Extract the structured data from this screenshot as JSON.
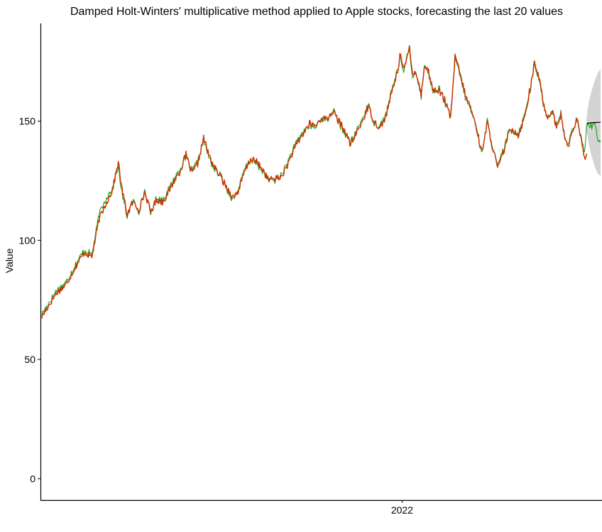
{
  "chart_data": {
    "type": "line",
    "title": "Damped Holt-Winters' multiplicative method applied to Apple stocks, forecasting the last 20 values",
    "xlabel": "",
    "ylabel": "Value",
    "ylim": [
      -9,
      191
    ],
    "yticks": [
      0,
      50,
      100,
      150
    ],
    "xticks": [
      {
        "index": 490,
        "label": "2022"
      }
    ],
    "grid": false,
    "legend": "none",
    "n_points": 761,
    "forecast_start_index": 741,
    "colors": {
      "actual": "#1a9e1a",
      "fitted": "#cc3300",
      "forecast": "#000000",
      "interval": "#d3d3d3"
    },
    "series": [
      {
        "key": "actual",
        "role": "actual",
        "knots": [
          [
            0,
            69
          ],
          [
            6,
            72
          ],
          [
            20,
            79
          ],
          [
            32,
            82
          ],
          [
            46,
            90
          ],
          [
            58,
            96
          ],
          [
            68,
            94
          ],
          [
            78,
            111
          ],
          [
            88,
            118
          ],
          [
            96,
            122
          ],
          [
            104,
            131
          ],
          [
            108,
            121
          ],
          [
            116,
            110
          ],
          [
            124,
            117
          ],
          [
            132,
            112
          ],
          [
            140,
            121
          ],
          [
            148,
            111
          ],
          [
            156,
            118
          ],
          [
            164,
            117
          ],
          [
            172,
            121
          ],
          [
            180,
            126
          ],
          [
            188,
            130
          ],
          [
            196,
            135
          ],
          [
            204,
            129
          ],
          [
            212,
            133
          ],
          [
            220,
            142
          ],
          [
            228,
            134
          ],
          [
            236,
            129
          ],
          [
            244,
            127
          ],
          [
            252,
            121
          ],
          [
            260,
            117
          ],
          [
            268,
            122
          ],
          [
            276,
            130
          ],
          [
            284,
            134
          ],
          [
            292,
            132
          ],
          [
            300,
            129
          ],
          [
            308,
            126
          ],
          [
            316,
            125
          ],
          [
            324,
            127
          ],
          [
            332,
            131
          ],
          [
            340,
            137
          ],
          [
            348,
            142
          ],
          [
            356,
            146
          ],
          [
            364,
            148
          ],
          [
            372,
            147
          ],
          [
            380,
            152
          ],
          [
            388,
            150
          ],
          [
            396,
            155
          ],
          [
            404,
            149
          ],
          [
            412,
            145
          ],
          [
            420,
            141
          ],
          [
            428,
            146
          ],
          [
            436,
            151
          ],
          [
            444,
            157
          ],
          [
            452,
            149
          ],
          [
            460,
            148
          ],
          [
            468,
            153
          ],
          [
            476,
            163
          ],
          [
            484,
            172
          ],
          [
            488,
            178
          ],
          [
            492,
            170
          ],
          [
            496,
            176
          ],
          [
            500,
            180
          ],
          [
            504,
            168
          ],
          [
            508,
            172
          ],
          [
            512,
            166
          ],
          [
            516,
            160
          ],
          [
            520,
            174
          ],
          [
            526,
            170
          ],
          [
            532,
            162
          ],
          [
            540,
            164
          ],
          [
            548,
            158
          ],
          [
            556,
            152
          ],
          [
            562,
            176
          ],
          [
            568,
            170
          ],
          [
            576,
            160
          ],
          [
            584,
            154
          ],
          [
            592,
            147
          ],
          [
            598,
            136
          ],
          [
            606,
            150
          ],
          [
            612,
            140
          ],
          [
            620,
            131
          ],
          [
            628,
            138
          ],
          [
            634,
            145
          ],
          [
            640,
            146
          ],
          [
            648,
            145
          ],
          [
            656,
            152
          ],
          [
            664,
            164
          ],
          [
            670,
            173
          ],
          [
            676,
            168
          ],
          [
            682,
            157
          ],
          [
            688,
            152
          ],
          [
            694,
            154
          ],
          [
            700,
            148
          ],
          [
            706,
            154
          ],
          [
            710,
            144
          ],
          [
            716,
            140
          ],
          [
            722,
            147
          ],
          [
            728,
            150
          ],
          [
            734,
            142
          ],
          [
            738,
            137
          ],
          [
            741,
            148
          ],
          [
            744,
            149
          ],
          [
            748,
            148
          ],
          [
            751,
            150
          ],
          [
            754,
            146
          ],
          [
            757,
            142
          ],
          [
            760,
            142
          ]
        ]
      },
      {
        "key": "fitted",
        "role": "fitted",
        "knots": [
          [
            0,
            68
          ],
          [
            6,
            71
          ],
          [
            20,
            78
          ],
          [
            32,
            81
          ],
          [
            46,
            89
          ],
          [
            58,
            95
          ],
          [
            68,
            93
          ],
          [
            78,
            109
          ],
          [
            88,
            116
          ],
          [
            96,
            121
          ],
          [
            104,
            133
          ],
          [
            108,
            123
          ],
          [
            116,
            111
          ],
          [
            124,
            116
          ],
          [
            132,
            113
          ],
          [
            140,
            120
          ],
          [
            148,
            112
          ],
          [
            156,
            117
          ],
          [
            164,
            116
          ],
          [
            172,
            120
          ],
          [
            180,
            125
          ],
          [
            188,
            129
          ],
          [
            196,
            136
          ],
          [
            204,
            128
          ],
          [
            212,
            132
          ],
          [
            220,
            143
          ],
          [
            228,
            135
          ],
          [
            236,
            130
          ],
          [
            244,
            126
          ],
          [
            252,
            122
          ],
          [
            260,
            118
          ],
          [
            268,
            121
          ],
          [
            276,
            129
          ],
          [
            284,
            134
          ],
          [
            292,
            133
          ],
          [
            300,
            130
          ],
          [
            308,
            125
          ],
          [
            316,
            126
          ],
          [
            324,
            126
          ],
          [
            332,
            130
          ],
          [
            340,
            136
          ],
          [
            348,
            141
          ],
          [
            356,
            145
          ],
          [
            364,
            149
          ],
          [
            372,
            148
          ],
          [
            380,
            151
          ],
          [
            388,
            151
          ],
          [
            396,
            154
          ],
          [
            404,
            150
          ],
          [
            412,
            146
          ],
          [
            420,
            140
          ],
          [
            428,
            145
          ],
          [
            436,
            150
          ],
          [
            444,
            156
          ],
          [
            452,
            150
          ],
          [
            460,
            147
          ],
          [
            468,
            152
          ],
          [
            476,
            162
          ],
          [
            484,
            171
          ],
          [
            488,
            179
          ],
          [
            492,
            172
          ],
          [
            496,
            175
          ],
          [
            500,
            181
          ],
          [
            504,
            170
          ],
          [
            508,
            171
          ],
          [
            512,
            167
          ],
          [
            516,
            161
          ],
          [
            520,
            173
          ],
          [
            526,
            171
          ],
          [
            532,
            163
          ],
          [
            540,
            163
          ],
          [
            548,
            159
          ],
          [
            556,
            151
          ],
          [
            562,
            177
          ],
          [
            568,
            171
          ],
          [
            576,
            161
          ],
          [
            584,
            155
          ],
          [
            592,
            146
          ],
          [
            598,
            137
          ],
          [
            606,
            149
          ],
          [
            612,
            141
          ],
          [
            620,
            130
          ],
          [
            628,
            137
          ],
          [
            634,
            144
          ],
          [
            640,
            147
          ],
          [
            648,
            144
          ],
          [
            656,
            151
          ],
          [
            664,
            163
          ],
          [
            670,
            174
          ],
          [
            676,
            169
          ],
          [
            682,
            158
          ],
          [
            688,
            151
          ],
          [
            694,
            155
          ],
          [
            700,
            147
          ],
          [
            706,
            153
          ],
          [
            710,
            145
          ],
          [
            716,
            139
          ],
          [
            722,
            146
          ],
          [
            728,
            151
          ],
          [
            734,
            141
          ],
          [
            738,
            135
          ],
          [
            741,
            136
          ]
        ]
      },
      {
        "key": "forecast",
        "role": "forecast",
        "knots": [
          [
            741,
            149
          ],
          [
            745,
            149.2
          ],
          [
            750,
            149.4
          ],
          [
            760,
            149.5
          ]
        ]
      }
    ],
    "interval": {
      "lower_knots": [
        [
          741,
          146
        ],
        [
          744,
          140
        ],
        [
          748,
          135
        ],
        [
          752,
          131
        ],
        [
          756,
          128
        ],
        [
          760,
          127
        ]
      ],
      "upper_knots": [
        [
          741,
          152
        ],
        [
          744,
          158
        ],
        [
          748,
          163
        ],
        [
          752,
          167
        ],
        [
          756,
          170
        ],
        [
          760,
          172
        ]
      ]
    }
  }
}
